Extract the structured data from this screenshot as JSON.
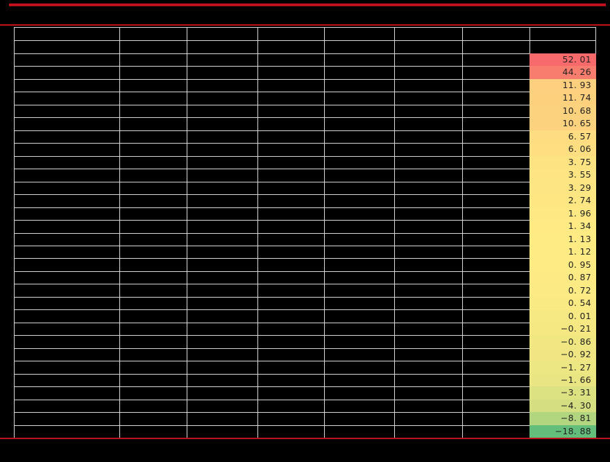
{
  "colors": {
    "background": "#000000",
    "red_accent": "#c1121a",
    "gridline": "#d9d9d9",
    "value_text": "#1f1f1f"
  },
  "chart_data": {
    "type": "table",
    "grid": {
      "columns": 8,
      "rows": 32,
      "empty_header_rows": 2
    },
    "value_column": {
      "position": "rightmost",
      "color_scale": {
        "max_color": "#F8696B",
        "mid_color": "#FFEB84",
        "min_color": "#63BE7B"
      },
      "rows": [
        {
          "display": "52. 01",
          "value": 52.01,
          "color": "#F8696B"
        },
        {
          "display": "44. 26",
          "value": 44.26,
          "color": "#F97D6F"
        },
        {
          "display": "11. 93",
          "value": 11.93,
          "color": "#FDCF7E"
        },
        {
          "display": "11. 74",
          "value": 11.74,
          "color": "#FDD07E"
        },
        {
          "display": "10. 68",
          "value": 10.68,
          "color": "#FDD27F"
        },
        {
          "display": "10. 65",
          "value": 10.65,
          "color": "#FDD27F"
        },
        {
          "display": "6. 57",
          "value": 6.57,
          "color": "#FEDC81"
        },
        {
          "display": "6. 06",
          "value": 6.06,
          "color": "#FEDE81"
        },
        {
          "display": "3. 75",
          "value": 3.75,
          "color": "#FEE382"
        },
        {
          "display": "3. 55",
          "value": 3.55,
          "color": "#FEE483"
        },
        {
          "display": "3. 29",
          "value": 3.29,
          "color": "#FEE583"
        },
        {
          "display": "2. 74",
          "value": 2.74,
          "color": "#FEE683"
        },
        {
          "display": "1. 96",
          "value": 1.96,
          "color": "#FEE883"
        },
        {
          "display": "1. 34",
          "value": 1.34,
          "color": "#FFEA84"
        },
        {
          "display": "1. 13",
          "value": 1.13,
          "color": "#FFEB84"
        },
        {
          "display": "1. 12",
          "value": 1.12,
          "color": "#FFEB84"
        },
        {
          "display": "0. 95",
          "value": 0.95,
          "color": "#FEEB84"
        },
        {
          "display": "0. 87",
          "value": 0.87,
          "color": "#FDEA84"
        },
        {
          "display": "0. 72",
          "value": 0.72,
          "color": "#FCEA84"
        },
        {
          "display": "0. 54",
          "value": 0.54,
          "color": "#FAEA84"
        },
        {
          "display": "0. 01",
          "value": 0.01,
          "color": "#F6E883"
        },
        {
          "display": "−0. 21",
          "value": -0.21,
          "color": "#F5E883"
        },
        {
          "display": "−0. 86",
          "value": -0.86,
          "color": "#F0E783"
        },
        {
          "display": "−0. 92",
          "value": -0.92,
          "color": "#EFE683"
        },
        {
          "display": "−1. 27",
          "value": -1.27,
          "color": "#ECE683"
        },
        {
          "display": "−1. 66",
          "value": -1.66,
          "color": "#E9E583"
        },
        {
          "display": "−3. 31",
          "value": -3.31,
          "color": "#DCE182"
        },
        {
          "display": "−4. 30",
          "value": -4.3,
          "color": "#D5DF82"
        },
        {
          "display": "−8. 81",
          "value": -8.81,
          "color": "#B2D580"
        },
        {
          "display": "−18. 88",
          "value": -18.88,
          "color": "#63BE7B"
        }
      ]
    }
  }
}
